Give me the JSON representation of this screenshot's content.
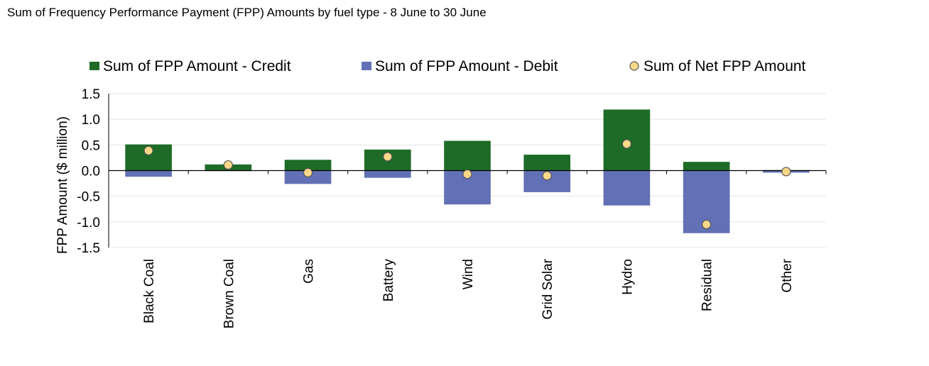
{
  "chart_data": {
    "type": "bar",
    "title": "Sum of Frequency Performance Payment (FPP) Amounts by fuel type - 8 June to 30 June",
    "xlabel": "",
    "ylabel": "FPP Amount ($ million)",
    "ylim": [
      -1.5,
      1.5
    ],
    "yticks": [
      "1.5",
      "1.0",
      "0.5",
      "0.0",
      "-0.5",
      "-1.0",
      "-1.5"
    ],
    "ytick_values": [
      1.5,
      1.0,
      0.5,
      0.0,
      -0.5,
      -1.0,
      -1.5
    ],
    "grid": "horizontal",
    "legend_position": "top",
    "categories": [
      "Black Coal",
      "Brown Coal",
      "Gas",
      "Battery",
      "Wind",
      "Grid Solar",
      "Hydro",
      "Residual",
      "Other"
    ],
    "series": [
      {
        "name": "Sum of FPP Amount - Credit",
        "kind": "bar",
        "color": "#1e6b27",
        "values": [
          0.51,
          0.12,
          0.21,
          0.41,
          0.58,
          0.31,
          1.19,
          0.17,
          0.01
        ]
      },
      {
        "name": "Sum of FPP Amount - Debit",
        "kind": "bar",
        "color": "#6270b5",
        "values": [
          -0.12,
          -0.01,
          -0.26,
          -0.14,
          -0.66,
          -0.42,
          -0.68,
          -1.22,
          -0.04
        ]
      },
      {
        "name": "Sum of Net FPP Amount",
        "kind": "marker",
        "color": "#fad88a",
        "values": [
          0.39,
          0.11,
          -0.04,
          0.27,
          -0.07,
          -0.1,
          0.52,
          -1.05,
          -0.02
        ]
      }
    ]
  }
}
